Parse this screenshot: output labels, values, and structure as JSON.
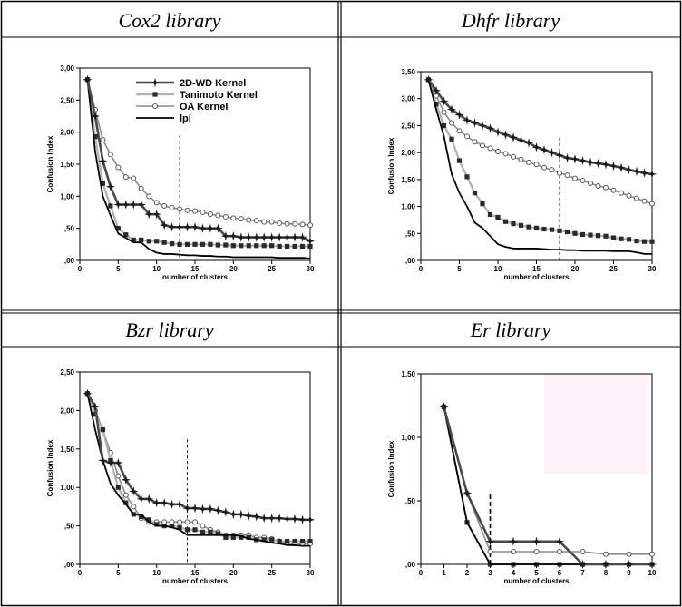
{
  "panels": [
    {
      "title": "Cox2 library"
    },
    {
      "title": "Dhfr library"
    },
    {
      "title": "Bzr library"
    },
    {
      "title": "Er library"
    }
  ],
  "legend": {
    "entries": [
      "2D-WD Kernel",
      "Tanimoto Kernel",
      "OA Kernel",
      "lpi"
    ]
  },
  "colors": {
    "wd": "#4a4a4a",
    "tanimoto": "#b0b0b0",
    "oa": "#8c8c8c",
    "lpi": "#000000"
  },
  "chart_data": [
    {
      "type": "line",
      "title": "Cox2 library",
      "xlabel": "number of clusters",
      "ylabel": "Confusion Index",
      "xlim": [
        0,
        30
      ],
      "ylim": [
        0,
        3
      ],
      "xticks": [
        "0",
        "5",
        "10",
        "15",
        "20",
        "25",
        "30"
      ],
      "yticks": [
        ",00",
        ",50",
        "1,00",
        "1,50",
        "2,00",
        "2,50",
        "3,00"
      ],
      "ytick_values": [
        0,
        0.5,
        1,
        1.5,
        2,
        2.5,
        3
      ],
      "legend": "top-right",
      "marker_x": 13,
      "series": [
        {
          "name": "2D-WD Kernel",
          "x": [
            1,
            2,
            3,
            4,
            5,
            6,
            7,
            8,
            9,
            10,
            11,
            12,
            13,
            14,
            15,
            16,
            17,
            18,
            19,
            20,
            21,
            22,
            23,
            24,
            25,
            26,
            27,
            28,
            29,
            30
          ],
          "values": [
            2.82,
            2.25,
            1.55,
            1.15,
            0.87,
            0.87,
            0.87,
            0.87,
            0.72,
            0.72,
            0.55,
            0.52,
            0.52,
            0.52,
            0.52,
            0.5,
            0.5,
            0.5,
            0.38,
            0.38,
            0.36,
            0.36,
            0.36,
            0.36,
            0.36,
            0.36,
            0.36,
            0.36,
            0.36,
            0.3
          ]
        },
        {
          "name": "Tanimoto Kernel",
          "x": [
            1,
            2,
            3,
            4,
            5,
            6,
            7,
            8,
            9,
            10,
            11,
            12,
            13,
            14,
            15,
            16,
            17,
            18,
            19,
            20,
            21,
            22,
            23,
            24,
            25,
            26,
            27,
            28,
            29,
            30
          ],
          "values": [
            2.82,
            1.93,
            1.2,
            0.85,
            0.5,
            0.4,
            0.32,
            0.32,
            0.3,
            0.3,
            0.28,
            0.26,
            0.25,
            0.25,
            0.25,
            0.25,
            0.25,
            0.24,
            0.24,
            0.23,
            0.23,
            0.23,
            0.23,
            0.23,
            0.23,
            0.22,
            0.22,
            0.22,
            0.22,
            0.22
          ]
        },
        {
          "name": "OA Kernel",
          "x": [
            1,
            2,
            3,
            4,
            5,
            6,
            7,
            8,
            9,
            10,
            11,
            12,
            13,
            14,
            15,
            16,
            17,
            18,
            19,
            20,
            21,
            22,
            23,
            24,
            25,
            26,
            27,
            28,
            29,
            30
          ],
          "values": [
            2.82,
            2.35,
            1.88,
            1.65,
            1.45,
            1.3,
            1.28,
            1.12,
            1.0,
            0.9,
            0.85,
            0.82,
            0.8,
            0.78,
            0.77,
            0.75,
            0.72,
            0.7,
            0.68,
            0.66,
            0.65,
            0.63,
            0.62,
            0.6,
            0.6,
            0.58,
            0.57,
            0.57,
            0.56,
            0.55
          ]
        },
        {
          "name": "lpi",
          "x": [
            1,
            2,
            3,
            4,
            5,
            6,
            7,
            8,
            9,
            10,
            11,
            12,
            13,
            14,
            15,
            16,
            17,
            18,
            19,
            20,
            21,
            22,
            23,
            24,
            25,
            26,
            27,
            28,
            29,
            30
          ],
          "values": [
            2.82,
            1.7,
            1.0,
            0.7,
            0.42,
            0.35,
            0.28,
            0.28,
            0.18,
            0.12,
            0.1,
            0.1,
            0.09,
            0.08,
            0.08,
            0.07,
            0.07,
            0.06,
            0.06,
            0.05,
            0.05,
            0.05,
            0.05,
            0.05,
            0.05,
            0.04,
            0.04,
            0.04,
            0.04,
            0.03
          ]
        }
      ]
    },
    {
      "type": "line",
      "title": "Dhfr library",
      "xlabel": "number of clusters",
      "ylabel": "Confusion Index",
      "xlim": [
        0,
        30
      ],
      "ylim": [
        0,
        3.5
      ],
      "xticks": [
        "0",
        "5",
        "10",
        "15",
        "20",
        "25",
        "30"
      ],
      "yticks": [
        ",00",
        ",50",
        "1,00",
        "1,50",
        "2,00",
        "2,50",
        "3,00",
        "3,50"
      ],
      "ytick_values": [
        0,
        0.5,
        1,
        1.5,
        2,
        2.5,
        3,
        3.5
      ],
      "marker_x": 18,
      "series": [
        {
          "name": "2D-WD Kernel",
          "x": [
            1,
            2,
            3,
            4,
            5,
            6,
            7,
            8,
            9,
            10,
            11,
            12,
            13,
            14,
            15,
            16,
            17,
            18,
            19,
            20,
            21,
            22,
            23,
            24,
            25,
            26,
            27,
            28,
            29,
            30
          ],
          "values": [
            3.35,
            3.15,
            2.95,
            2.8,
            2.7,
            2.6,
            2.55,
            2.5,
            2.45,
            2.38,
            2.33,
            2.28,
            2.23,
            2.18,
            2.1,
            2.05,
            2.0,
            1.95,
            1.9,
            1.88,
            1.85,
            1.82,
            1.8,
            1.78,
            1.75,
            1.72,
            1.68,
            1.65,
            1.62,
            1.6
          ]
        },
        {
          "name": "Tanimoto Kernel",
          "x": [
            1,
            2,
            3,
            4,
            5,
            6,
            7,
            8,
            9,
            10,
            11,
            12,
            13,
            14,
            15,
            16,
            17,
            18,
            19,
            20,
            21,
            22,
            23,
            24,
            25,
            26,
            27,
            28,
            29,
            30
          ],
          "values": [
            3.35,
            2.9,
            2.5,
            2.25,
            1.85,
            1.55,
            1.25,
            1.05,
            0.85,
            0.8,
            0.72,
            0.68,
            0.65,
            0.62,
            0.6,
            0.58,
            0.57,
            0.55,
            0.53,
            0.5,
            0.48,
            0.47,
            0.46,
            0.45,
            0.42,
            0.4,
            0.39,
            0.36,
            0.35,
            0.35
          ]
        },
        {
          "name": "OA Kernel",
          "x": [
            1,
            2,
            3,
            4,
            5,
            6,
            7,
            8,
            9,
            10,
            11,
            12,
            13,
            14,
            15,
            16,
            17,
            18,
            19,
            20,
            21,
            22,
            23,
            24,
            25,
            26,
            27,
            28,
            29,
            30
          ],
          "values": [
            3.35,
            3.05,
            2.75,
            2.55,
            2.4,
            2.3,
            2.2,
            2.13,
            2.08,
            2.02,
            1.98,
            1.92,
            1.87,
            1.82,
            1.78,
            1.72,
            1.68,
            1.62,
            1.58,
            1.52,
            1.48,
            1.43,
            1.38,
            1.35,
            1.3,
            1.25,
            1.2,
            1.15,
            1.1,
            1.05
          ]
        },
        {
          "name": "lpi",
          "x": [
            1,
            2,
            3,
            4,
            5,
            6,
            7,
            8,
            9,
            10,
            11,
            12,
            13,
            14,
            15,
            16,
            17,
            18,
            19,
            20,
            21,
            22,
            23,
            24,
            25,
            26,
            27,
            28,
            29,
            30
          ],
          "values": [
            3.35,
            2.8,
            2.3,
            1.6,
            1.25,
            1.0,
            0.7,
            0.6,
            0.45,
            0.3,
            0.25,
            0.22,
            0.22,
            0.22,
            0.22,
            0.21,
            0.2,
            0.2,
            0.19,
            0.19,
            0.18,
            0.18,
            0.18,
            0.18,
            0.17,
            0.17,
            0.17,
            0.15,
            0.12,
            0.12
          ]
        }
      ]
    },
    {
      "type": "line",
      "title": "Bzr library",
      "xlabel": "number of clusters",
      "ylabel": "Confusion Index",
      "xlim": [
        0,
        30
      ],
      "ylim": [
        0,
        2.5
      ],
      "xticks": [
        "0",
        "5",
        "10",
        "15",
        "20",
        "25",
        "30"
      ],
      "yticks": [
        ",00",
        ",50",
        "1,00",
        "1,50",
        "2,00",
        "2,50"
      ],
      "ytick_values": [
        0,
        0.5,
        1,
        1.5,
        2,
        2.5
      ],
      "marker_x": 14,
      "series": [
        {
          "name": "2D-WD Kernel",
          "x": [
            1,
            2,
            3,
            4,
            5,
            6,
            7,
            8,
            9,
            10,
            11,
            12,
            13,
            14,
            15,
            16,
            17,
            18,
            19,
            20,
            21,
            22,
            23,
            24,
            25,
            26,
            27,
            28,
            29,
            30
          ],
          "values": [
            2.22,
            2.05,
            1.35,
            1.32,
            1.32,
            1.1,
            0.95,
            0.85,
            0.85,
            0.8,
            0.8,
            0.78,
            0.78,
            0.73,
            0.73,
            0.72,
            0.72,
            0.7,
            0.68,
            0.65,
            0.65,
            0.63,
            0.62,
            0.6,
            0.6,
            0.6,
            0.59,
            0.59,
            0.58,
            0.58
          ]
        },
        {
          "name": "Tanimoto Kernel",
          "x": [
            1,
            2,
            3,
            4,
            5,
            6,
            7,
            8,
            9,
            10,
            11,
            12,
            13,
            14,
            15,
            16,
            17,
            18,
            19,
            20,
            21,
            22,
            23,
            24,
            25,
            26,
            27,
            28,
            29,
            30
          ],
          "values": [
            2.22,
            1.95,
            1.75,
            1.35,
            1.0,
            0.8,
            0.65,
            0.62,
            0.58,
            0.52,
            0.5,
            0.5,
            0.48,
            0.45,
            0.45,
            0.42,
            0.42,
            0.4,
            0.35,
            0.35,
            0.35,
            0.35,
            0.32,
            0.32,
            0.32,
            0.3,
            0.3,
            0.3,
            0.3,
            0.3
          ]
        },
        {
          "name": "OA Kernel",
          "x": [
            1,
            2,
            3,
            4,
            5,
            6,
            7,
            8,
            9,
            10,
            11,
            12,
            13,
            14,
            15,
            16,
            17,
            18,
            19,
            20,
            21,
            22,
            23,
            24,
            25,
            26,
            27,
            28,
            29,
            30
          ],
          "values": [
            2.22,
            2.0,
            1.75,
            1.45,
            1.15,
            0.9,
            0.75,
            0.6,
            0.55,
            0.55,
            0.55,
            0.55,
            0.55,
            0.55,
            0.55,
            0.5,
            0.45,
            0.42,
            0.38,
            0.38,
            0.38,
            0.38,
            0.35,
            0.35,
            0.33,
            0.3,
            0.28,
            0.27,
            0.27,
            0.27
          ]
        },
        {
          "name": "lpi",
          "x": [
            1,
            2,
            3,
            4,
            5,
            6,
            7,
            8,
            9,
            10,
            11,
            12,
            13,
            14,
            15,
            16,
            17,
            18,
            19,
            20,
            21,
            22,
            23,
            24,
            25,
            26,
            27,
            28,
            29,
            30
          ],
          "values": [
            2.22,
            1.75,
            1.35,
            1.05,
            0.9,
            0.78,
            0.65,
            0.65,
            0.55,
            0.5,
            0.5,
            0.48,
            0.45,
            0.38,
            0.38,
            0.38,
            0.38,
            0.38,
            0.38,
            0.38,
            0.37,
            0.33,
            0.32,
            0.3,
            0.28,
            0.27,
            0.25,
            0.25,
            0.24,
            0.24
          ]
        }
      ]
    },
    {
      "type": "line",
      "title": "Er library",
      "xlabel": "number of clusters",
      "ylabel": "Confusion Index",
      "xlim": [
        0,
        10
      ],
      "ylim": [
        0,
        1.5
      ],
      "xticks": [
        "0",
        "1",
        "2",
        "3",
        "4",
        "5",
        "6",
        "7",
        "8",
        "9",
        "10"
      ],
      "yticks": [
        ",00",
        ",50",
        "1,00",
        "1,50"
      ],
      "ytick_values": [
        0,
        0.5,
        1,
        1.5
      ],
      "marker_x": 3,
      "series": [
        {
          "name": "2D-WD Kernel",
          "x": [
            1,
            2,
            3,
            4,
            5,
            6,
            7,
            8,
            9,
            10
          ],
          "values": [
            1.24,
            0.56,
            0.18,
            0.18,
            0.18,
            0.18,
            0.0,
            0.0,
            0.0,
            0.0
          ]
        },
        {
          "name": "Tanimoto Kernel",
          "x": [
            1,
            2,
            3,
            4,
            5,
            6,
            7,
            8,
            9,
            10
          ],
          "values": [
            1.24,
            0.33,
            0.0,
            0.0,
            0.0,
            0.0,
            0.0,
            0.0,
            0.0,
            0.0
          ]
        },
        {
          "name": "OA Kernel",
          "x": [
            1,
            2,
            3,
            4,
            5,
            6,
            7,
            8,
            9,
            10
          ],
          "values": [
            1.24,
            0.56,
            0.1,
            0.1,
            0.1,
            0.1,
            0.1,
            0.08,
            0.08,
            0.08
          ]
        },
        {
          "name": "lpi",
          "x": [
            1,
            2,
            3,
            4,
            5,
            6,
            7,
            8,
            9,
            10
          ],
          "values": [
            1.24,
            0.33,
            0.0,
            0.0,
            0.0,
            0.0,
            0.0,
            0.0,
            0.0,
            0.0
          ]
        }
      ]
    }
  ]
}
